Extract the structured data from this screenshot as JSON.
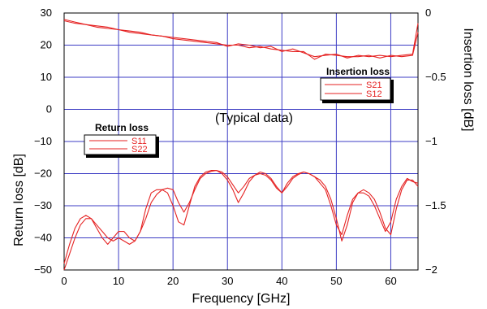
{
  "chart_data": {
    "type": "line",
    "xlabel": "Frequency [GHz]",
    "ylabel_left": "Return loss [dB]",
    "ylabel_right": "Insertion loss [dB]",
    "xlim": [
      0,
      65
    ],
    "ylim_left": [
      -50,
      30
    ],
    "ylim_right": [
      -2,
      0
    ],
    "x_ticks": [
      0,
      10,
      20,
      30,
      40,
      50,
      60
    ],
    "y_left_ticks": [
      30,
      20,
      10,
      0,
      -10,
      -20,
      -30,
      -40,
      -50
    ],
    "y_left_tick_labels": [
      "30",
      "20",
      "10",
      "0",
      "−10",
      "−20",
      "−30",
      "−40",
      "−50"
    ],
    "y_right_ticks": [
      0,
      -0.5,
      -1,
      -1.5,
      -2
    ],
    "y_right_tick_labels": [
      "0",
      "−0.5",
      "−1",
      "−1.5",
      "−2"
    ],
    "grid": true,
    "annotation": "(Typical data)",
    "legends": [
      {
        "title": "Insertion loss",
        "entries": [
          "S21",
          "S12"
        ],
        "position": "top-right"
      },
      {
        "title": "Return loss",
        "entries": [
          "S11",
          "S22"
        ],
        "position": "middle-left"
      }
    ],
    "series": [
      {
        "name": "S21",
        "axis": "right",
        "x": [
          0,
          2,
          4,
          6,
          8,
          10,
          12,
          14,
          16,
          18,
          20,
          22,
          24,
          26,
          28,
          30,
          32,
          34,
          36,
          38,
          40,
          42,
          44,
          46,
          48,
          50,
          52,
          54,
          56,
          58,
          60,
          62,
          64,
          65
        ],
        "y": [
          -0.05,
          -0.07,
          -0.09,
          -0.1,
          -0.11,
          -0.13,
          -0.14,
          -0.15,
          -0.17,
          -0.18,
          -0.19,
          -0.2,
          -0.21,
          -0.22,
          -0.23,
          -0.26,
          -0.24,
          -0.25,
          -0.27,
          -0.26,
          -0.3,
          -0.28,
          -0.31,
          -0.34,
          -0.33,
          -0.32,
          -0.35,
          -0.33,
          -0.34,
          -0.33,
          -0.34,
          -0.33,
          -0.32,
          -0.08
        ]
      },
      {
        "name": "S12",
        "axis": "right",
        "x": [
          0,
          2,
          4,
          6,
          8,
          10,
          12,
          14,
          16,
          18,
          20,
          22,
          24,
          26,
          28,
          30,
          32,
          34,
          36,
          38,
          40,
          42,
          44,
          46,
          48,
          50,
          52,
          54,
          56,
          58,
          60,
          62,
          64,
          65
        ],
        "y": [
          -0.06,
          -0.08,
          -0.09,
          -0.11,
          -0.12,
          -0.13,
          -0.15,
          -0.16,
          -0.17,
          -0.18,
          -0.2,
          -0.21,
          -0.22,
          -0.23,
          -0.24,
          -0.25,
          -0.25,
          -0.27,
          -0.26,
          -0.28,
          -0.29,
          -0.3,
          -0.3,
          -0.36,
          -0.32,
          -0.33,
          -0.34,
          -0.34,
          -0.33,
          -0.35,
          -0.33,
          -0.34,
          -0.33,
          -0.15
        ]
      },
      {
        "name": "S11",
        "axis": "left",
        "x": [
          0,
          1,
          2,
          3,
          4,
          5,
          6,
          7,
          8,
          9,
          10,
          11,
          12,
          13,
          14,
          15,
          16,
          17,
          18,
          19,
          20,
          21,
          22,
          23,
          24,
          25,
          26,
          27,
          28,
          29,
          30,
          31,
          32,
          33,
          34,
          35,
          36,
          37,
          38,
          39,
          40,
          41,
          42,
          43,
          44,
          45,
          46,
          47,
          48,
          49,
          50,
          51,
          52,
          53,
          54,
          55,
          56,
          57,
          58,
          59,
          60,
          61,
          62,
          63,
          64,
          65
        ],
        "y": [
          -48,
          -42,
          -37,
          -34,
          -33,
          -34,
          -37,
          -40,
          -42,
          -40,
          -38,
          -38,
          -40,
          -41,
          -38,
          -31,
          -26,
          -25,
          -25,
          -26,
          -30,
          -35,
          -36,
          -30,
          -24,
          -21,
          -19.5,
          -19,
          -19,
          -20,
          -22,
          -25,
          -29,
          -26,
          -22.5,
          -20.5,
          -19.5,
          -20,
          -21.5,
          -24,
          -26,
          -23,
          -21,
          -20,
          -19.5,
          -20,
          -21,
          -22,
          -24,
          -28,
          -34,
          -41,
          -36,
          -29,
          -26,
          -25,
          -26,
          -28,
          -32,
          -37,
          -39,
          -31,
          -25,
          -22,
          -22,
          -24
        ]
      },
      {
        "name": "S22",
        "axis": "left",
        "x": [
          0,
          1,
          2,
          3,
          4,
          5,
          6,
          7,
          8,
          9,
          10,
          11,
          12,
          13,
          14,
          15,
          16,
          17,
          18,
          19,
          20,
          21,
          22,
          23,
          24,
          25,
          26,
          27,
          28,
          29,
          30,
          31,
          32,
          33,
          34,
          35,
          36,
          37,
          38,
          39,
          40,
          41,
          42,
          43,
          44,
          45,
          46,
          47,
          48,
          49,
          50,
          51,
          52,
          53,
          54,
          55,
          56,
          57,
          58,
          59,
          60,
          61,
          62,
          63,
          64,
          65
        ],
        "y": [
          -50,
          -45,
          -40,
          -36,
          -34,
          -34,
          -36,
          -38,
          -40,
          -41,
          -40,
          -41,
          -42,
          -41,
          -38,
          -34,
          -29,
          -26.5,
          -25,
          -24.5,
          -25,
          -29,
          -32,
          -29,
          -25,
          -21.5,
          -20,
          -19.3,
          -19,
          -19.5,
          -21,
          -23.5,
          -26,
          -24,
          -21.5,
          -20.5,
          -20,
          -20.5,
          -22,
          -24.5,
          -26,
          -24,
          -21.5,
          -20.3,
          -19.5,
          -20,
          -21,
          -23,
          -25,
          -30,
          -36,
          -39,
          -33,
          -28,
          -26,
          -26,
          -27,
          -30,
          -34,
          -38,
          -35,
          -28,
          -24,
          -21.5,
          -22.5,
          -23
        ]
      }
    ]
  }
}
